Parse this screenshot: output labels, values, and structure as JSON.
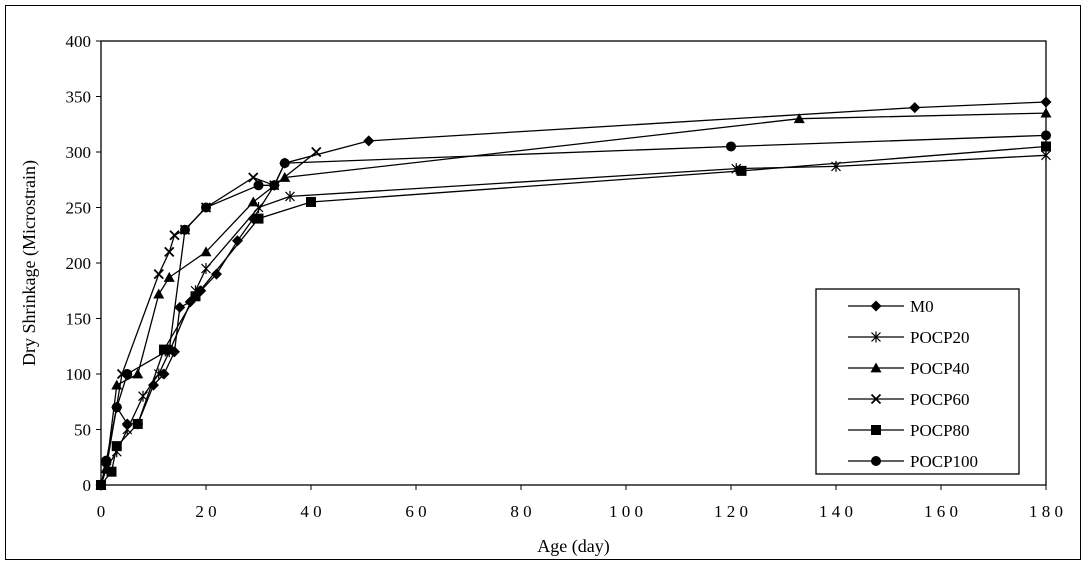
{
  "chart_data": {
    "type": "line",
    "xlabel": "Age (day)",
    "ylabel": "Dry Shrinkage (Microstrain)",
    "xlim": [
      0,
      180
    ],
    "ylim": [
      0,
      400
    ],
    "xticks": [
      0,
      20,
      40,
      60,
      80,
      100,
      120,
      140,
      160,
      180
    ],
    "yticks": [
      0,
      50,
      100,
      150,
      200,
      250,
      300,
      350,
      400
    ],
    "x_tick_labels": [
      "0",
      "2 0",
      "4 0",
      "6 0",
      "8 0",
      "1 0 0",
      "1 2 0",
      "1 4 0",
      "1 6 0",
      "1 8 0"
    ],
    "y_tick_labels": [
      "0",
      "50",
      "100",
      "150",
      "200",
      "250",
      "300",
      "350",
      "400"
    ],
    "grid": false,
    "legend_position": "bottom-right",
    "series": [
      {
        "name": "M0",
        "marker": "diamond",
        "x": [
          0,
          1,
          3,
          5,
          7,
          10,
          12,
          14,
          15,
          17,
          19,
          22,
          26,
          29,
          33,
          35,
          51,
          155,
          180
        ],
        "y": [
          0,
          20,
          70,
          55,
          55,
          90,
          100,
          120,
          160,
          165,
          175,
          190,
          220,
          240,
          270,
          290,
          310,
          340,
          345
        ]
      },
      {
        "name": "POCP20",
        "marker": "asterisk",
        "x": [
          0,
          1,
          3,
          5,
          8,
          11,
          13,
          18,
          20,
          30,
          36,
          121,
          140,
          180
        ],
        "y": [
          0,
          15,
          30,
          50,
          80,
          100,
          120,
          175,
          195,
          250,
          260,
          285,
          287,
          297
        ]
      },
      {
        "name": "POCP40",
        "marker": "triangle",
        "x": [
          0,
          1,
          3,
          7,
          11,
          13,
          20,
          29,
          35,
          133,
          180
        ],
        "y": [
          0,
          15,
          90,
          100,
          172,
          187,
          210,
          255,
          277,
          330,
          335
        ]
      },
      {
        "name": "POCP60",
        "marker": "x",
        "x": [
          0,
          1,
          4,
          11,
          13,
          14,
          16,
          20,
          29,
          33,
          41
        ],
        "y": [
          0,
          15,
          100,
          190,
          210,
          225,
          230,
          250,
          277,
          270,
          300
        ]
      },
      {
        "name": "POCP80",
        "marker": "square",
        "x": [
          0,
          2,
          3,
          7,
          12,
          18,
          30,
          40,
          122,
          180
        ],
        "y": [
          0,
          12,
          35,
          55,
          122,
          170,
          240,
          255,
          283,
          305
        ]
      },
      {
        "name": "POCP100",
        "marker": "circle",
        "x": [
          0,
          1,
          3,
          5,
          13,
          16,
          20,
          30,
          33,
          35,
          120,
          180
        ],
        "y": [
          0,
          22,
          70,
          100,
          122,
          230,
          250,
          270,
          270,
          290,
          305,
          315
        ]
      }
    ]
  }
}
